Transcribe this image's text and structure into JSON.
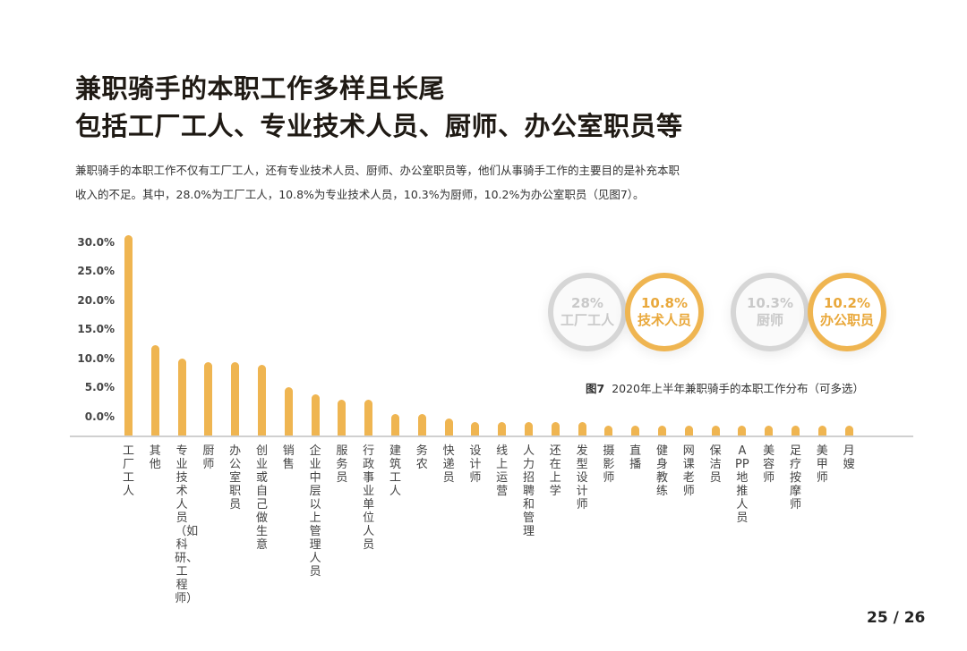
{
  "header": {
    "title_line1": "兼职骑手的本职工作多样且长尾",
    "title_line2": "包括工厂工人、专业技术人员、厨师、办公室职员等"
  },
  "description": {
    "line1": "兼职骑手的本职工作不仅有工厂工人，还有专业技术人员、厨师、办公室职员等，他们从事骑手工作的主要目的是补充本职",
    "line2": "收入的不足。其中，28.0%为工厂工人，10.8%为专业技术人员，10.3%为厨师，10.2%为办公室职员（见图7）。"
  },
  "highlights": [
    {
      "pct": "28%",
      "label": "工厂工人",
      "style": "gray"
    },
    {
      "pct": "10.8%",
      "label": "技术人员",
      "style": "gold"
    },
    {
      "pct": "10.3%",
      "label": "厨师",
      "style": "gray"
    },
    {
      "pct": "10.2%",
      "label": "办公职员",
      "style": "gold"
    }
  ],
  "caption": {
    "fig": "图7",
    "text": "2020年上半年兼职骑手的本职工作分布（可多选）"
  },
  "page_number": "25 / 26",
  "colors": {
    "bar": "#efb551",
    "highlight_gold": "#e9a83b",
    "highlight_gray": "#d6d6d6"
  },
  "chart_data": {
    "type": "bar",
    "title": "2020年上半年兼职骑手的本职工作分布（可多选）",
    "xlabel": "",
    "ylabel": "",
    "yticks": [
      "30.0%",
      "25.0%",
      "20.0%",
      "15.0%",
      "10.0%",
      "5.0%",
      "0.0%"
    ],
    "ylim": [
      0,
      30
    ],
    "grid": false,
    "legend": null,
    "categories": [
      "工厂工人",
      "其他",
      "专业技术人员（如科研、工程师）",
      "厨师",
      "办公室职员",
      "创业或自己做生意",
      "销售",
      "企业中层以上管理人员",
      "服务员",
      "行政事业单位人员",
      "建筑工人",
      "务农",
      "快递员",
      "设计师",
      "线上运营",
      "人力招聘和管理",
      "还在上学",
      "发型设计师",
      "摄影师",
      "直播",
      "健身教练",
      "网课老师",
      "保洁员",
      "APP地推人员",
      "美容师",
      "足疗按摩师",
      "美甲师",
      "月嫂"
    ],
    "values": [
      28.0,
      12.6,
      10.8,
      10.3,
      10.2,
      9.9,
      6.8,
      5.8,
      5.0,
      5.0,
      3.0,
      3.0,
      2.4,
      1.9,
      1.9,
      1.9,
      1.9,
      1.9,
      1.4,
      1.4,
      1.4,
      1.4,
      1.4,
      1.4,
      1.4,
      1.4,
      1.4,
      1.4
    ],
    "annotations": [
      "28%工厂工人",
      "10.8%技术人员",
      "10.3%厨师",
      "10.2%办公职员"
    ]
  }
}
